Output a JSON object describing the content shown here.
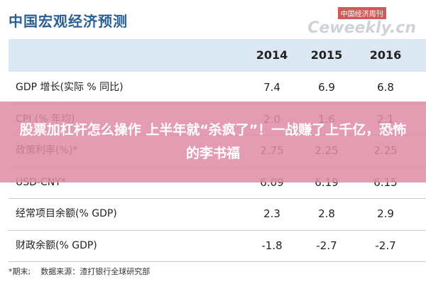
{
  "header": {
    "title": "中国宏观经济预测",
    "watermark_brand": "中国经济周刊",
    "watermark_site": "Ceweekly.cn"
  },
  "table": {
    "columns": [
      "2014",
      "2015",
      "2016"
    ],
    "rows": [
      [
        "GDP 增长(实际 % 同比)",
        "7.4",
        "6.9",
        "6.8"
      ],
      [
        "CPI (% 年均)",
        "2.0",
        "1.6",
        "2.1"
      ],
      [
        "政策利率(%)*",
        "2.75",
        "2.25",
        "2.25"
      ],
      [
        "USD-CNY*",
        "6.09",
        "6.19",
        "6.15"
      ],
      [
        "经常项目余额(% GDP)",
        "2.3",
        "2.8",
        "2.9"
      ],
      [
        "财政余额(% GDP)",
        "-1.8",
        "-2.7",
        "-2.7"
      ]
    ],
    "footnote": "*期末;    数据来源：渣打银行全球研究部"
  },
  "overlay": {
    "headline": "股票加杠杆怎么操作 上半年就“杀疯了”！一战赚了上千亿，恐怖的李书福"
  }
}
